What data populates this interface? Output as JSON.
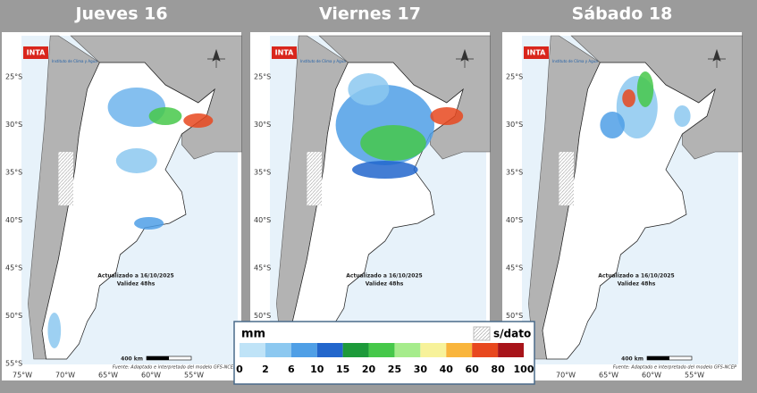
{
  "panels": [
    {
      "title": "Jueves 16",
      "logo": "INTA",
      "institute": "Instituto de Clima y Agua",
      "lat_labels": [
        "25°S",
        "30°S",
        "35°S",
        "40°S",
        "45°S",
        "50°S",
        "55°S"
      ],
      "lon_labels": [
        "75°W",
        "70°W",
        "65°W",
        "60°W",
        "55°W"
      ],
      "updated": "Actualizado a 16/10/2025",
      "validity": "Validez 48hs",
      "scale": "400 km",
      "source": "Fuente: Adaptado e interpretado del modelo GFS-NCEP"
    },
    {
      "title": "Viernes 17",
      "logo": "INTA",
      "institute": "Instituto de Clima y Agua",
      "lat_labels": [
        "25°S",
        "30°S",
        "35°S",
        "40°S",
        "45°S",
        "50°S"
      ],
      "lon_labels": [],
      "updated": "Actualizado a 16/10/2025",
      "validity": "Validez 48hs",
      "scale": "",
      "source": ""
    },
    {
      "title": "Sábado 18",
      "logo": "INTA",
      "institute": "Instituto de Clima y Agua",
      "lat_labels": [
        "25°S",
        "30°S",
        "35°S",
        "40°S",
        "45°S",
        "50°S"
      ],
      "lon_labels": [
        "70°W",
        "65°W",
        "60°W",
        "55°W"
      ],
      "updated": "Actualizado a 16/10/2025",
      "validity": "Validez 48hs",
      "scale": "400 km",
      "source": "Fuente: Adaptado e interpretado del modelo GFS-NCEP"
    }
  ],
  "legend": {
    "unit": "mm",
    "no_data": "s/dato",
    "ticks": [
      "0",
      "2",
      "6",
      "10",
      "15",
      "20",
      "25",
      "30",
      "40",
      "60",
      "80",
      "100"
    ],
    "colors": [
      "#bfe3f7",
      "#8cc8f0",
      "#4f9fe6",
      "#2266cc",
      "#1d9a3a",
      "#46c84a",
      "#a6ec8c",
      "#f7f29a",
      "#f9b53c",
      "#e8481e",
      "#a8141a"
    ]
  }
}
